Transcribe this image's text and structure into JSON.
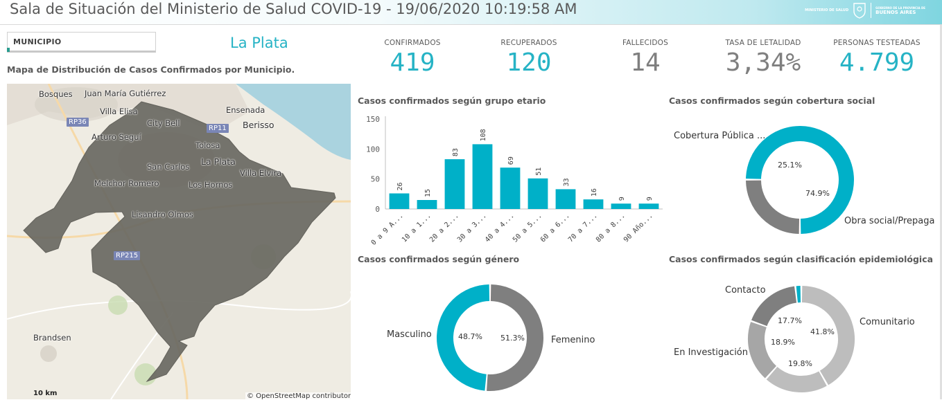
{
  "header": {
    "title": "Sala de Situación del Ministerio de Salud COVID-19 - 19/06/2020 10:19:58 AM",
    "logo_ministerio": "MINISTERIO DE SALUD",
    "logo_gobierno": "GOBIERNO DE LA PROVINCIA DE",
    "logo_provincia": "BUENOS AIRES"
  },
  "filter": {
    "label": "MUNICIPIO",
    "selected": "La Plata"
  },
  "map": {
    "title": "Mapa de Distribución de Casos Confirmados por Municipio.",
    "places": [
      "Bosques",
      "Juan María Gutiérrez",
      "Villa Elisa",
      "Ensenada",
      "City Bell",
      "Berisso",
      "Arturo Seguí",
      "Tolosa",
      "La Plata",
      "San Carlos",
      "Villa Elvira",
      "Melchor Romero",
      "Los Hornos",
      "Lisandro Olmos",
      "Brandsen"
    ],
    "roads": [
      "RP36",
      "RP11",
      "RP215"
    ],
    "scale": "10 km",
    "credit": "© OpenStreetMap contributors",
    "colors": {
      "land": "#efece3",
      "water": "#aad3df",
      "municipio": "#6b6a63"
    }
  },
  "kpis": [
    {
      "label": "CONFIRMADOS",
      "value": "419",
      "color": "#26b3c5"
    },
    {
      "label": "RECUPERADOS",
      "value": "120",
      "color": "#26b3c5"
    },
    {
      "label": "FALLECIDOS",
      "value": "14",
      "color": "#7f7f7f"
    },
    {
      "label": "TASA DE LETALIDAD",
      "value": "3,34%",
      "color": "#7f7f7f"
    },
    {
      "label": "PERSONAS TESTEADAS",
      "value": "4.799",
      "color": "#26b3c5"
    }
  ],
  "chart_data": [
    {
      "type": "bar",
      "title": "Casos confirmados según grupo etario",
      "categories": [
        "0 a 9 A...",
        "10 a 1...",
        "20 a 2...",
        "30 a 3...",
        "40 a 4...",
        "50 a 5...",
        "60 a 6...",
        "70 a 7...",
        "80 a 8...",
        "90 Año..."
      ],
      "values": [
        26,
        15,
        83,
        108,
        69,
        51,
        33,
        16,
        9,
        9
      ],
      "yticks": [
        0,
        50,
        100,
        150
      ],
      "ylim": [
        0,
        150
      ],
      "color": "#00b0c8"
    },
    {
      "type": "pie",
      "title": "Casos confirmados según cobertura social",
      "labels": [
        "Cobertura Pública ...",
        "Obra social/Prepaga"
      ],
      "values": [
        25.1,
        74.9
      ],
      "pct_labels": [
        "25.1%",
        "74.9%"
      ],
      "colors": [
        "#7f7f7f",
        "#00b0c8"
      ]
    },
    {
      "type": "pie",
      "title": "Casos confirmados según género",
      "labels": [
        "Femenino",
        "Masculino"
      ],
      "values": [
        51.3,
        48.7
      ],
      "pct_labels": [
        "51.3%",
        "48.7%"
      ],
      "colors": [
        "#7f7f7f",
        "#00b0c8"
      ]
    },
    {
      "type": "pie",
      "title": "Casos confirmados según clasificación epidemiológica",
      "labels": [
        "Comunitario",
        "",
        "En Investigación",
        "Contacto",
        ""
      ],
      "values": [
        41.8,
        19.8,
        18.9,
        17.7,
        1.8
      ],
      "pct_labels": [
        "41.8%",
        "19.8%",
        "18.9%",
        "17.7%",
        ""
      ],
      "colors": [
        "#bdbdbd",
        "#bdbdbd",
        "#a6a6a6",
        "#7f7f7f",
        "#00b0c8"
      ]
    }
  ]
}
